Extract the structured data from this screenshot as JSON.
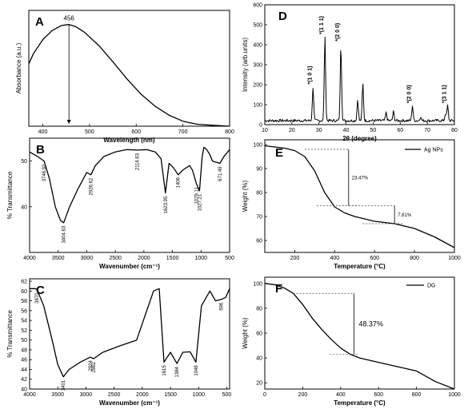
{
  "chart_data": [
    {
      "panel": "A",
      "type": "line",
      "xlabel": "Wavelength (nm)",
      "ylabel": "Absorbance (a.u.)",
      "xlim": [
        370,
        800
      ],
      "ylim": [
        0,
        1.15
      ],
      "xticks": [
        400,
        500,
        600,
        700,
        800
      ],
      "x": [
        370,
        380,
        400,
        420,
        440,
        456,
        470,
        490,
        520,
        550,
        580,
        610,
        640,
        670,
        700,
        730,
        760,
        800
      ],
      "y": [
        0.62,
        0.72,
        0.86,
        0.95,
        1.0,
        1.01,
        0.99,
        0.93,
        0.8,
        0.64,
        0.47,
        0.32,
        0.2,
        0.11,
        0.05,
        0.02,
        0.01,
        0.0
      ],
      "annotations": [
        {
          "text": "456",
          "x": 456
        }
      ],
      "grid": false
    },
    {
      "panel": "D",
      "type": "line",
      "xlabel": "2θ (degree)",
      "ylabel": "Intensity (arb.units)",
      "xlim": [
        10,
        80
      ],
      "ylim": [
        0,
        600
      ],
      "xticks": [
        10,
        20,
        30,
        40,
        50,
        60,
        70,
        80
      ],
      "yticks": [
        0,
        100,
        200,
        300,
        400,
        500,
        600
      ],
      "baseline": 20,
      "peaks": [
        {
          "x": 27.8,
          "y": 190
        },
        {
          "x": 32.2,
          "y": 440
        },
        {
          "x": 38.1,
          "y": 405
        },
        {
          "x": 44.3,
          "y": 125
        },
        {
          "x": 46.2,
          "y": 205
        },
        {
          "x": 54.8,
          "y": 60
        },
        {
          "x": 57.5,
          "y": 65
        },
        {
          "x": 64.5,
          "y": 95
        },
        {
          "x": 67.5,
          "y": 40
        },
        {
          "x": 76.7,
          "y": 55
        },
        {
          "x": 77.5,
          "y": 95
        }
      ],
      "peak_labels": [
        {
          "text": "(1 0 1)",
          "x": 27.8
        },
        {
          "text": "(1 1 1)",
          "x": 32.2
        },
        {
          "text": "(2 0 0)",
          "x": 38.1
        },
        {
          "text": "(2 0 0)",
          "x": 64.5
        },
        {
          "text": "(3 1 1)",
          "x": 77.5
        }
      ],
      "marker": "*",
      "grid": false
    },
    {
      "panel": "B",
      "type": "line",
      "xlabel": "Wavenumber (cm⁻¹)",
      "ylabel": "% Transmittance",
      "xlim": [
        4000,
        500
      ],
      "ylim": [
        30,
        55
      ],
      "xticks": [
        4000,
        3500,
        3000,
        2500,
        2000,
        1500,
        1000,
        500
      ],
      "yticks": [
        40,
        50
      ],
      "x": [
        4000,
        3860,
        3746,
        3650,
        3550,
        3460,
        3404,
        3300,
        3150,
        3000,
        2926,
        2850,
        2700,
        2500,
        2300,
        2114,
        1950,
        1800,
        1700,
        1623,
        1560,
        1480,
        1400,
        1320,
        1200,
        1150,
        1079,
        1027,
        980,
        950,
        900,
        850,
        800,
        671,
        600,
        500
      ],
      "y": [
        52,
        51,
        50,
        46,
        40,
        37,
        36.5,
        40,
        44,
        47.5,
        47,
        49,
        51,
        52,
        52.5,
        52.4,
        52.5,
        52,
        50.5,
        43,
        49.5,
        48.5,
        47,
        48,
        49,
        48,
        45,
        43.5,
        51,
        53,
        52.5,
        51.5,
        50,
        49.5,
        51,
        52.5
      ],
      "point_labels": [
        {
          "text": "3746.92",
          "x": 3746
        },
        {
          "text": "3404.63",
          "x": 3404
        },
        {
          "text": "2926.62",
          "x": 2926
        },
        {
          "text": "2114.63",
          "x": 2114
        },
        {
          "text": "1623.95",
          "x": 1623
        },
        {
          "text": "1406",
          "x": 1406
        },
        {
          "text": "1079.11",
          "x": 1079
        },
        {
          "text": "1027.21",
          "x": 1027
        },
        {
          "text": "671.49",
          "x": 671
        }
      ],
      "grid": false
    },
    {
      "panel": "E",
      "type": "line",
      "xlabel": "Temperature (°C)",
      "ylabel": "Weight (%)",
      "xlim": [
        50,
        1000
      ],
      "ylim": [
        55,
        102
      ],
      "xticks": [
        200,
        400,
        600,
        800,
        1000
      ],
      "yticks": [
        60,
        70,
        80,
        90,
        100
      ],
      "legend": [
        "Ag NPs"
      ],
      "legend_position": "top-right",
      "x": [
        50,
        100,
        150,
        200,
        250,
        300,
        350,
        400,
        450,
        500,
        600,
        700,
        800,
        900,
        1000
      ],
      "y": [
        99.5,
        99,
        98.5,
        97.5,
        95,
        89,
        80,
        74,
        71.5,
        70,
        68,
        67,
        65,
        61.5,
        57
      ],
      "annotations": [
        {
          "text": "23.47%",
          "x_from": 250,
          "x_to": 470,
          "y_from": 98,
          "y_to": 74.5
        },
        {
          "text": "7.81%",
          "x_from": 470,
          "x_to": 700,
          "y_from": 74.5,
          "y_to": 67
        }
      ],
      "grid": false
    },
    {
      "panel": "C",
      "type": "line",
      "xlabel": "Wavenumber (cm⁻¹)",
      "ylabel": "% Transmittance",
      "xlim": [
        4000,
        450
      ],
      "ylim": [
        40,
        62.5
      ],
      "xticks": [
        4000,
        3500,
        3000,
        2500,
        2000,
        1500,
        1000,
        500
      ],
      "yticks": [
        40,
        42,
        44,
        46,
        48,
        50,
        52,
        54,
        56,
        58,
        60,
        62
      ],
      "x": [
        4000,
        3900,
        3870,
        3750,
        3600,
        3500,
        3401,
        3300,
        3100,
        2924,
        2862,
        2700,
        2400,
        2100,
        1800,
        1700,
        1615,
        1500,
        1384,
        1280,
        1150,
        1048,
        950,
        800,
        700,
        596,
        520,
        450
      ],
      "y": [
        60.5,
        60.5,
        60.3,
        57,
        50,
        45,
        42.5,
        44,
        45.5,
        46.5,
        46.2,
        47.5,
        48.8,
        50,
        60,
        60.5,
        45.5,
        47.5,
        45.2,
        47.5,
        47.6,
        45.5,
        57,
        60,
        58,
        58.3,
        58.7,
        60.5
      ],
      "point_labels": [
        {
          "text": "3870",
          "x": 3870
        },
        {
          "text": "3401",
          "x": 3401
        },
        {
          "text": "2924",
          "x": 2924
        },
        {
          "text": "2862",
          "x": 2862
        },
        {
          "text": "1615",
          "x": 1615
        },
        {
          "text": "1384",
          "x": 1384
        },
        {
          "text": "1048",
          "x": 1048
        },
        {
          "text": "596",
          "x": 596
        }
      ],
      "grid": false
    },
    {
      "panel": "F",
      "type": "line",
      "xlabel": "Temperature (°C)",
      "ylabel": "Weight (%)",
      "xlim": [
        0,
        1000
      ],
      "ylim": [
        15,
        105
      ],
      "xticks": [
        0,
        200,
        400,
        600,
        800,
        1000
      ],
      "yticks": [
        20,
        40,
        60,
        80,
        100
      ],
      "legend": [
        "DG"
      ],
      "legend_position": "top-right",
      "x": [
        0,
        50,
        100,
        150,
        200,
        250,
        300,
        350,
        400,
        450,
        500,
        600,
        700,
        800,
        900,
        1000
      ],
      "y": [
        100,
        99,
        96.5,
        92,
        83,
        72,
        63,
        55,
        48,
        43,
        40,
        36.5,
        33,
        29.5,
        21,
        15
      ],
      "annotations": [
        {
          "text": "48.37%",
          "x_from": 150,
          "x_to": 470,
          "y_from": 92,
          "y_to": 43
        }
      ],
      "grid": false
    }
  ]
}
